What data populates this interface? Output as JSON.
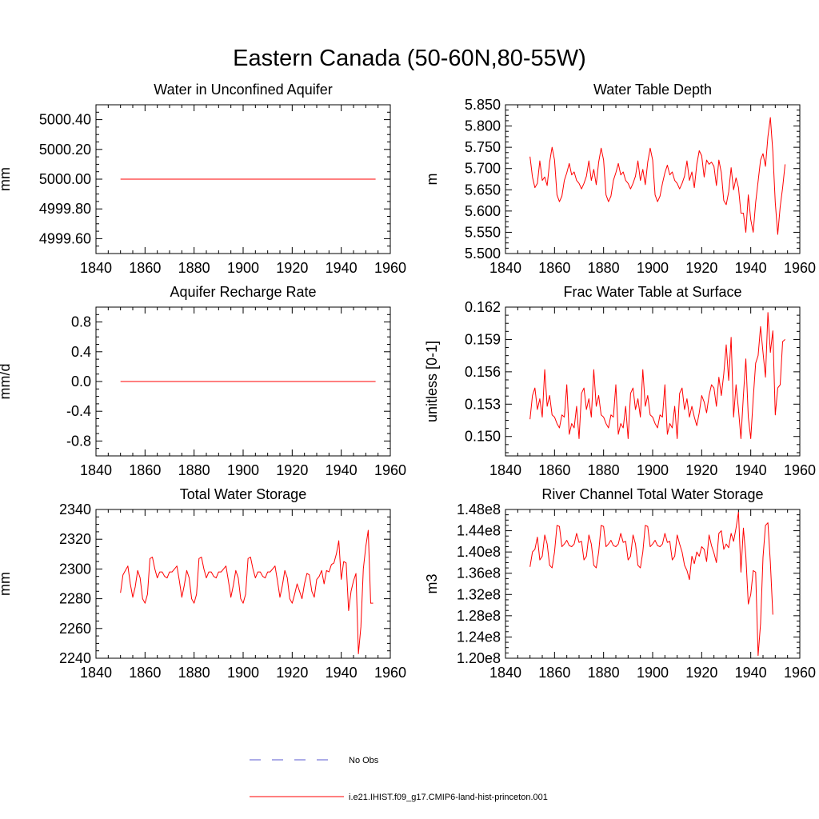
{
  "page_title": "Eastern Canada (50-60N,80-55W)",
  "legend": {
    "position": "bottom-center",
    "items": [
      {
        "label": "No Obs",
        "color": "#5a5ad0",
        "style": "dashed"
      },
      {
        "label": "i.e21.IHIST.f09_g17.CMIP6-land-hist-princeton.001",
        "color": "#ff0000",
        "style": "solid"
      }
    ]
  },
  "chart_data": [
    {
      "type": "line",
      "title": "Water in Unconfined Aquifer",
      "ylabel": "mm",
      "xlim": [
        1840,
        1960
      ],
      "ylim": [
        4999.5,
        5000.5
      ],
      "xticks": [
        "1840",
        "1860",
        "1880",
        "1900",
        "1920",
        "1940",
        "1960"
      ],
      "yticks": [
        "4999.60",
        "4999.80",
        "5000.00",
        "5000.20",
        "5000.40"
      ],
      "ytick_values": [
        4999.6,
        4999.8,
        5000.0,
        5000.2,
        5000.4
      ],
      "x_start": 1850,
      "series": [
        {
          "color": "#ff0000",
          "values": [
            5000,
            5000,
            5000,
            5000,
            5000,
            5000,
            5000,
            5000,
            5000,
            5000,
            5000,
            5000,
            5000,
            5000,
            5000,
            5000,
            5000,
            5000,
            5000,
            5000,
            5000,
            5000,
            5000,
            5000,
            5000,
            5000,
            5000,
            5000,
            5000,
            5000,
            5000,
            5000,
            5000,
            5000,
            5000,
            5000,
            5000,
            5000,
            5000,
            5000,
            5000,
            5000,
            5000,
            5000,
            5000,
            5000,
            5000,
            5000,
            5000,
            5000,
            5000,
            5000,
            5000,
            5000,
            5000,
            5000,
            5000,
            5000,
            5000,
            5000,
            5000,
            5000,
            5000,
            5000,
            5000,
            5000,
            5000,
            5000,
            5000,
            5000,
            5000,
            5000,
            5000,
            5000,
            5000,
            5000,
            5000,
            5000,
            5000,
            5000,
            5000,
            5000,
            5000,
            5000,
            5000,
            5000,
            5000,
            5000,
            5000,
            5000,
            5000,
            5000,
            5000,
            5000,
            5000,
            5000,
            5000,
            5000,
            5000,
            5000,
            5000,
            5000,
            5000,
            5000,
            5000
          ]
        }
      ]
    },
    {
      "type": "line",
      "title": "Water Table Depth",
      "ylabel": "m",
      "xlim": [
        1840,
        1960
      ],
      "ylim": [
        5.5,
        5.85
      ],
      "xticks": [
        "1840",
        "1860",
        "1880",
        "1900",
        "1920",
        "1940",
        "1960"
      ],
      "yticks": [
        "5.500",
        "5.550",
        "5.600",
        "5.650",
        "5.700",
        "5.750",
        "5.800",
        "5.850"
      ],
      "ytick_values": [
        5.5,
        5.55,
        5.6,
        5.65,
        5.7,
        5.75,
        5.8,
        5.85
      ],
      "x_start": 1850,
      "series": [
        {
          "color": "#ff0000",
          "values": [
            5.728,
            5.68,
            5.655,
            5.665,
            5.718,
            5.672,
            5.68,
            5.66,
            5.715,
            5.75,
            5.72,
            5.638,
            5.622,
            5.635,
            5.672,
            5.69,
            5.712,
            5.685,
            5.692,
            5.672,
            5.665,
            5.652,
            5.665,
            5.682,
            5.718,
            5.672,
            5.698,
            5.662,
            5.715,
            5.748,
            5.72,
            5.638,
            5.622,
            5.635,
            5.672,
            5.69,
            5.712,
            5.685,
            5.692,
            5.672,
            5.665,
            5.652,
            5.665,
            5.682,
            5.718,
            5.672,
            5.698,
            5.662,
            5.715,
            5.748,
            5.72,
            5.638,
            5.622,
            5.635,
            5.665,
            5.69,
            5.708,
            5.685,
            5.692,
            5.672,
            5.665,
            5.652,
            5.665,
            5.682,
            5.718,
            5.672,
            5.692,
            5.655,
            5.71,
            5.742,
            5.73,
            5.68,
            5.72,
            5.71,
            5.715,
            5.705,
            5.66,
            5.72,
            5.69,
            5.625,
            5.615,
            5.645,
            5.702,
            5.65,
            5.678,
            5.655,
            5.595,
            5.595,
            5.55,
            5.638,
            5.58,
            5.55,
            5.62,
            5.67,
            5.72,
            5.735,
            5.705,
            5.775,
            5.82,
            5.74,
            5.62,
            5.545,
            5.61,
            5.655,
            5.71
          ]
        }
      ]
    },
    {
      "type": "line",
      "title": "Aquifer Recharge Rate",
      "ylabel": "mm/d",
      "xlim": [
        1840,
        1960
      ],
      "ylim": [
        -1.0,
        1.0
      ],
      "xticks": [
        "1840",
        "1860",
        "1880",
        "1900",
        "1920",
        "1940",
        "1960"
      ],
      "yticks": [
        "-0.8",
        "-0.4",
        "0.0",
        "0.4",
        "0.8"
      ],
      "ytick_values": [
        -0.8,
        -0.4,
        0.0,
        0.4,
        0.8
      ],
      "x_start": 1850,
      "series": [
        {
          "color": "#ff0000",
          "values": [
            0,
            0,
            0,
            0,
            0,
            0,
            0,
            0,
            0,
            0,
            0,
            0,
            0,
            0,
            0,
            0,
            0,
            0,
            0,
            0,
            0,
            0,
            0,
            0,
            0,
            0,
            0,
            0,
            0,
            0,
            0,
            0,
            0,
            0,
            0,
            0,
            0,
            0,
            0,
            0,
            0,
            0,
            0,
            0,
            0,
            0,
            0,
            0,
            0,
            0,
            0,
            0,
            0,
            0,
            0,
            0,
            0,
            0,
            0,
            0,
            0,
            0,
            0,
            0,
            0,
            0,
            0,
            0,
            0,
            0,
            0,
            0,
            0,
            0,
            0,
            0,
            0,
            0,
            0,
            0,
            0,
            0,
            0,
            0,
            0,
            0,
            0,
            0,
            0,
            0,
            0,
            0,
            0,
            0,
            0,
            0,
            0,
            0,
            0,
            0,
            0,
            0,
            0,
            0,
            0
          ]
        }
      ]
    },
    {
      "type": "line",
      "title": "Frac Water Table at Surface",
      "ylabel": "unitless [0-1]",
      "xlim": [
        1840,
        1960
      ],
      "ylim": [
        0.1482,
        0.162
      ],
      "xticks": [
        "1840",
        "1860",
        "1880",
        "1900",
        "1920",
        "1940",
        "1960"
      ],
      "yticks": [
        "0.150",
        "0.153",
        "0.156",
        "0.159",
        "0.162"
      ],
      "ytick_values": [
        0.15,
        0.153,
        0.156,
        0.159,
        0.162
      ],
      "x_start": 1850,
      "series": [
        {
          "color": "#ff0000",
          "values": [
            0.1516,
            0.1538,
            0.1545,
            0.1525,
            0.1535,
            0.1518,
            0.1562,
            0.1528,
            0.1538,
            0.152,
            0.1518,
            0.1512,
            0.1508,
            0.152,
            0.1518,
            0.1548,
            0.1502,
            0.1512,
            0.1508,
            0.1528,
            0.1498,
            0.154,
            0.1545,
            0.1525,
            0.1535,
            0.1518,
            0.1562,
            0.1528,
            0.1538,
            0.152,
            0.1518,
            0.1512,
            0.1508,
            0.152,
            0.1518,
            0.1548,
            0.1502,
            0.1512,
            0.1508,
            0.1528,
            0.1498,
            0.154,
            0.1545,
            0.1525,
            0.1535,
            0.1518,
            0.1562,
            0.1528,
            0.1538,
            0.152,
            0.1518,
            0.1512,
            0.1508,
            0.152,
            0.1518,
            0.1548,
            0.1502,
            0.1512,
            0.1508,
            0.1528,
            0.1498,
            0.154,
            0.1545,
            0.1525,
            0.1535,
            0.1518,
            0.1528,
            0.1518,
            0.151,
            0.1522,
            0.1538,
            0.1532,
            0.1522,
            0.1538,
            0.1548,
            0.1545,
            0.1528,
            0.1555,
            0.1538,
            0.1558,
            0.1585,
            0.1552,
            0.1592,
            0.1518,
            0.1548,
            0.1525,
            0.1498,
            0.1538,
            0.1572,
            0.1518,
            0.1498,
            0.1535,
            0.1568,
            0.1575,
            0.1602,
            0.1578,
            0.1555,
            0.1615,
            0.1578,
            0.1598,
            0.152,
            0.1545,
            0.1548,
            0.1588,
            0.159
          ]
        }
      ]
    },
    {
      "type": "line",
      "title": "Total Water Storage",
      "ylabel": "mm",
      "xlim": [
        1840,
        1960
      ],
      "ylim": [
        2240,
        2340
      ],
      "xticks": [
        "1840",
        "1860",
        "1880",
        "1900",
        "1920",
        "1940",
        "1960"
      ],
      "yticks": [
        "2240",
        "2260",
        "2280",
        "2300",
        "2320",
        "2340"
      ],
      "ytick_values": [
        2240,
        2260,
        2280,
        2300,
        2320,
        2340
      ],
      "x_start": 1850,
      "series": [
        {
          "color": "#ff0000",
          "values": [
            2284,
            2296,
            2299,
            2302,
            2290,
            2281,
            2288,
            2299,
            2294,
            2280,
            2277,
            2283,
            2307,
            2308,
            2300,
            2294,
            2298,
            2298,
            2295,
            2294,
            2298,
            2298,
            2300,
            2302,
            2292,
            2281,
            2289,
            2299,
            2294,
            2280,
            2277,
            2283,
            2307,
            2308,
            2300,
            2294,
            2298,
            2298,
            2295,
            2294,
            2298,
            2298,
            2300,
            2302,
            2292,
            2281,
            2289,
            2299,
            2294,
            2280,
            2277,
            2283,
            2307,
            2308,
            2300,
            2294,
            2298,
            2298,
            2295,
            2294,
            2298,
            2298,
            2300,
            2302,
            2292,
            2281,
            2289,
            2299,
            2294,
            2280,
            2277,
            2283,
            2290,
            2285,
            2280,
            2290,
            2297,
            2296,
            2285,
            2281,
            2293,
            2295,
            2299,
            2290,
            2299,
            2298,
            2303,
            2304,
            2310,
            2319,
            2293,
            2305,
            2304,
            2272,
            2285,
            2292,
            2297,
            2243,
            2261,
            2300,
            2315,
            2326,
            2277,
            2277
          ]
        }
      ]
    },
    {
      "type": "line",
      "title": "River Channel Total Water Storage",
      "ylabel": "m3",
      "xlim": [
        1840,
        1960
      ],
      "ylim": [
        120000000.0,
        148000000.0
      ],
      "xticks": [
        "1840",
        "1860",
        "1880",
        "1900",
        "1920",
        "1940",
        "1960"
      ],
      "yticks": [
        "1.20e8",
        "1.24e8",
        "1.28e8",
        "1.32e8",
        "1.36e8",
        "1.40e8",
        "1.44e8",
        "1.48e8"
      ],
      "ytick_values": [
        120000000.0,
        124000000.0,
        128000000.0,
        132000000.0,
        136000000.0,
        140000000.0,
        144000000.0,
        148000000.0
      ],
      "x_start": 1850,
      "series": [
        {
          "color": "#ff0000",
          "values": [
            137200000.0,
            140000000.0,
            140500000.0,
            142800000.0,
            138500000.0,
            139200000.0,
            143200000.0,
            141500000.0,
            137500000.0,
            137000000.0,
            140000000.0,
            145000000.0,
            144800000.0,
            141000000.0,
            141500000.0,
            142200000.0,
            141200000.0,
            141000000.0,
            141500000.0,
            143500000.0,
            141800000.0,
            142000000.0,
            138500000.0,
            139200000.0,
            143200000.0,
            141500000.0,
            137500000.0,
            137000000.0,
            140000000.0,
            145000000.0,
            144800000.0,
            141000000.0,
            141500000.0,
            142200000.0,
            141200000.0,
            141000000.0,
            141500000.0,
            143500000.0,
            141800000.0,
            142000000.0,
            138500000.0,
            139200000.0,
            143200000.0,
            141500000.0,
            137500000.0,
            137000000.0,
            140000000.0,
            145000000.0,
            144800000.0,
            141000000.0,
            141500000.0,
            142200000.0,
            141200000.0,
            141000000.0,
            141500000.0,
            143500000.0,
            141800000.0,
            142000000.0,
            138500000.0,
            139200000.0,
            143200000.0,
            141500000.0,
            140000000.0,
            137500000.0,
            136500000.0,
            134800000.0,
            139200000.0,
            137800000.0,
            140000000.0,
            139200000.0,
            141000000.0,
            140500000.0,
            138200000.0,
            143200000.0,
            141200000.0,
            139800000.0,
            138000000.0,
            143500000.0,
            144000000.0,
            140500000.0,
            141500000.0,
            140800000.0,
            143500000.0,
            142000000.0,
            144500000.0,
            147500000.0,
            136200000.0,
            144500000.0,
            139200000.0,
            130200000.0,
            132000000.0,
            136500000.0,
            136200000.0,
            120500000.0,
            126500000.0,
            139000000.0,
            145000000.0,
            145500000.0,
            138000000.0,
            128200000.0
          ]
        }
      ]
    }
  ]
}
